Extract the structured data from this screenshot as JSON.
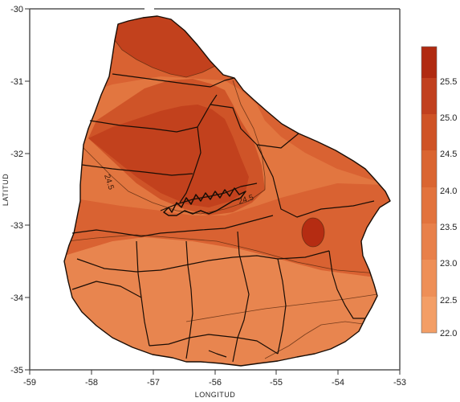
{
  "map": {
    "x_axis_label": "LONGITUD",
    "y_axis_label": "LATITUD",
    "x_ticks": [
      "-59",
      "-58",
      "-57",
      "-56",
      "-55",
      "-54",
      "-53"
    ],
    "y_ticks": [
      "-30",
      "-31",
      "-32",
      "-33",
      "-34",
      "-35"
    ],
    "contour_labels": [
      "24.5",
      "24.5"
    ]
  },
  "legend": {
    "ticks": [
      "25.5",
      "25.0",
      "24.5",
      "24.0",
      "23.5",
      "23.0",
      "22.5",
      "22.0"
    ],
    "colors": [
      "#b02a10",
      "#c1401e",
      "#cf5326",
      "#da6531",
      "#e2733d",
      "#e8804a",
      "#ee8f57",
      "#f39e66",
      "#f7ae76"
    ]
  },
  "colors": {
    "north_zone": "#c2411d",
    "mid_zone": "#cf5428",
    "band_zone": "#d96232",
    "south_zone": "#e27640",
    "coast_zone": "#e8854f",
    "hotspot": "#b52c12",
    "border": "#1a0d05"
  }
}
